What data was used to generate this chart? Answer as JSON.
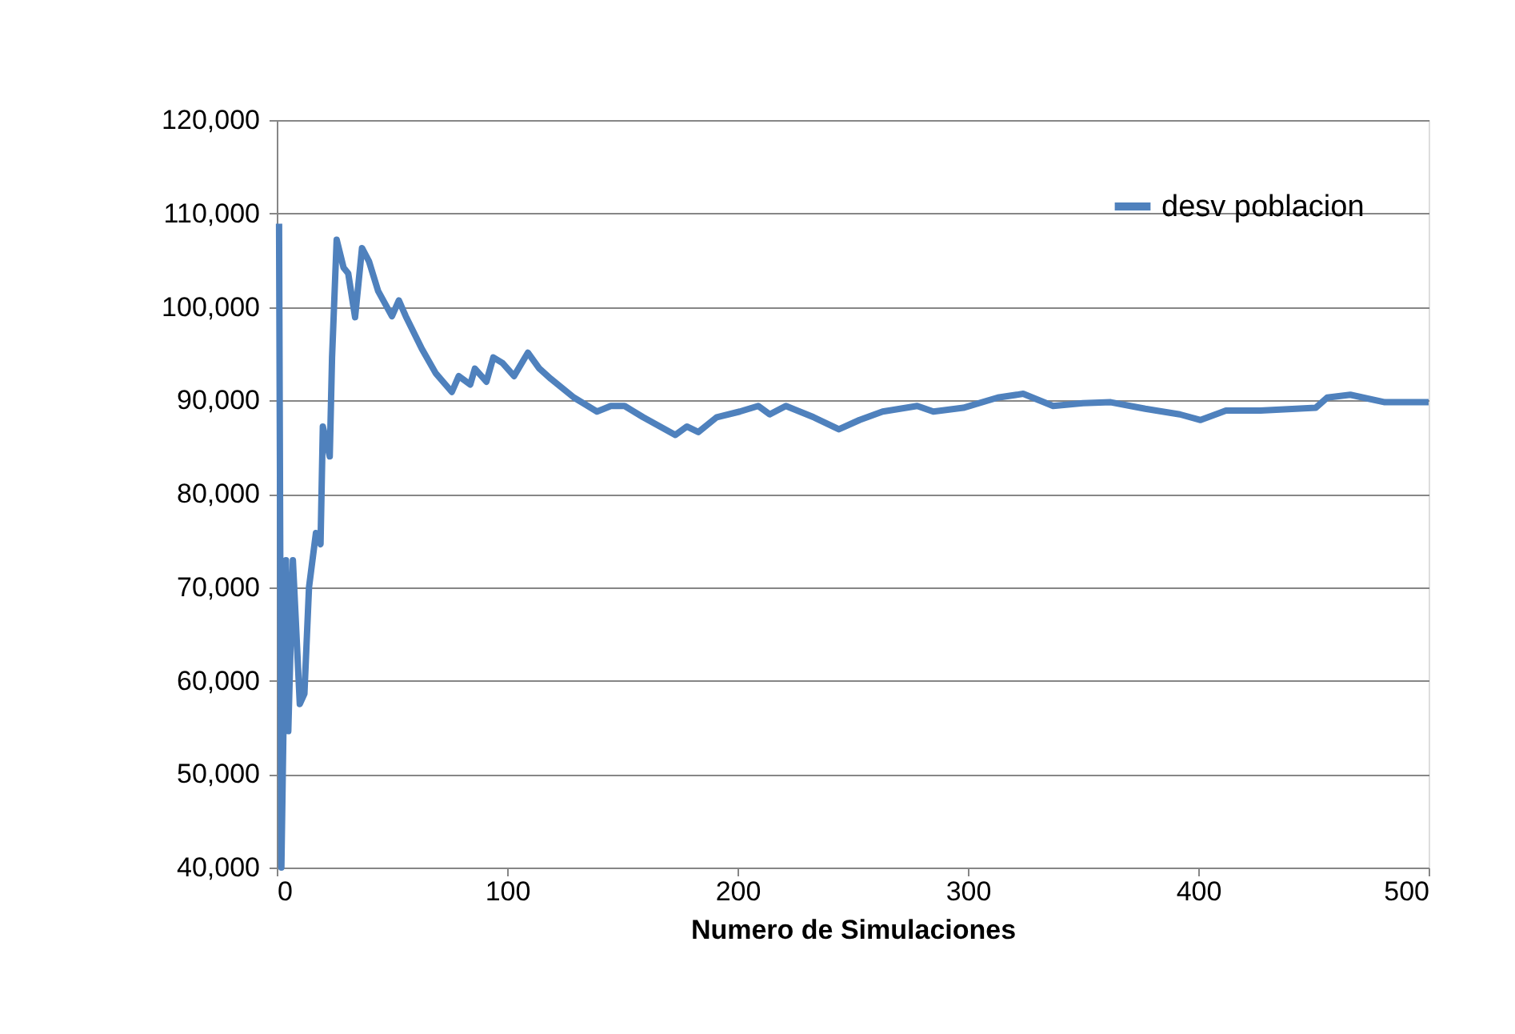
{
  "chart_data": {
    "type": "line",
    "xlabel": "Numero de Simulaciones",
    "xlim": [
      0,
      500
    ],
    "xticks": [
      0,
      100,
      200,
      300,
      400,
      500
    ],
    "ylim": [
      40000,
      120000
    ],
    "yticks": [
      {
        "value": 40000,
        "label": "40,000"
      },
      {
        "value": 50000,
        "label": "50,000"
      },
      {
        "value": 60000,
        "label": "60,000"
      },
      {
        "value": 70000,
        "label": "70,000"
      },
      {
        "value": 80000,
        "label": "80,000"
      },
      {
        "value": 90000,
        "label": "90,000"
      },
      {
        "value": 100000,
        "label": "100,000"
      },
      {
        "value": 110000,
        "label": "110,000"
      },
      {
        "value": 120000,
        "label": "120,000"
      }
    ],
    "grid": "y",
    "legend": "top right",
    "marker": "none",
    "line_style": "solid",
    "series": [
      {
        "name": "desv poblacion",
        "color": "#4f81bd",
        "x": [
          1,
          2,
          4,
          5,
          7,
          10,
          12,
          14,
          17,
          19,
          20,
          23,
          24,
          26,
          29,
          31,
          34,
          37,
          40,
          44,
          50,
          53,
          56,
          63,
          69,
          76,
          79,
          84,
          86,
          91,
          94,
          98,
          103,
          109,
          114,
          119,
          129,
          139,
          145,
          151,
          159,
          173,
          178,
          183,
          191,
          201,
          209,
          214,
          221,
          233,
          244,
          253,
          263,
          278,
          285,
          298,
          313,
          324,
          337,
          350,
          362,
          377,
          392,
          401,
          412,
          427,
          451,
          456,
          466,
          481,
          500
        ],
        "values": [
          108900,
          40000,
          72900,
          54600,
          72900,
          57500,
          58600,
          70000,
          75800,
          74600,
          87200,
          84000,
          94600,
          107200,
          104200,
          103600,
          98900,
          106300,
          104900,
          101700,
          99000,
          100700,
          99000,
          95500,
          92900,
          90900,
          92600,
          91700,
          93400,
          92000,
          94600,
          94000,
          92600,
          95100,
          93400,
          92300,
          90300,
          88800,
          89400,
          89400,
          88200,
          86300,
          87200,
          86600,
          88200,
          88800,
          89400,
          88500,
          89400,
          88200,
          86900,
          87900,
          88800,
          89400,
          88800,
          89200,
          90300,
          90700,
          89400,
          89700,
          89800,
          89100,
          88500,
          87900,
          88900,
          88900,
          89200,
          90300,
          90600,
          89800,
          89800
        ]
      }
    ]
  }
}
